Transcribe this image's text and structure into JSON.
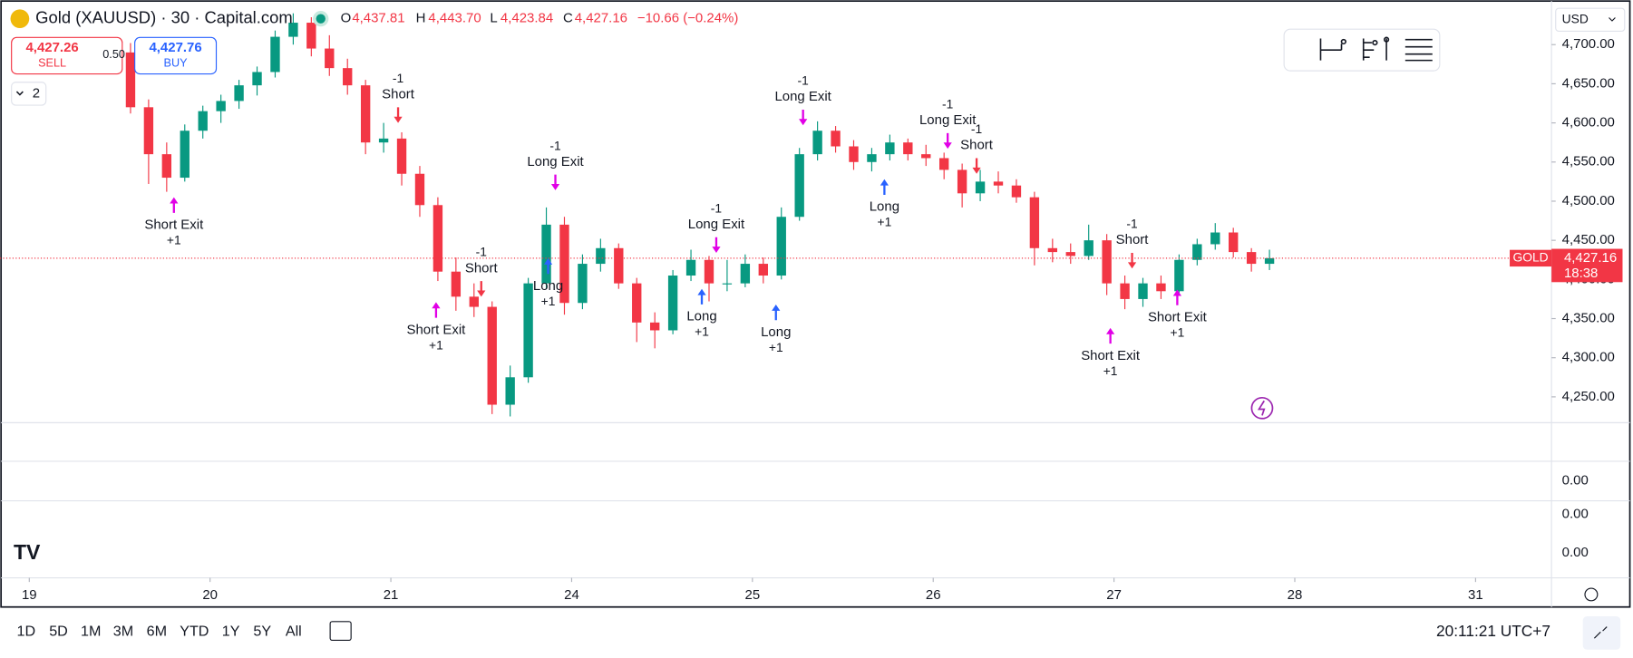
{
  "header": {
    "symbol": "Gold (XAUUSD) · 30 · Capital.com",
    "open_key": "O",
    "open": "4,437.81",
    "high_key": "H",
    "high": "4,443.70",
    "low_key": "L",
    "low": "4,423.84",
    "close_key": "C",
    "close": "4,427.16",
    "change": "−10.66 (−0.24%)"
  },
  "trade": {
    "sell_price": "4,427.26",
    "sell_label": "SELL",
    "spread": "0.50",
    "buy_price": "4,427.76",
    "buy_label": "BUY"
  },
  "indicator_count": "2",
  "currency": "USD",
  "chart_data": {
    "type": "candlestick",
    "x": [
      0.56,
      0.66,
      0.76,
      0.86,
      0.96,
      1.06,
      1.16,
      1.26,
      1.36,
      1.46,
      1.56,
      1.66,
      1.76,
      1.86,
      1.96,
      2.06,
      2.16,
      2.26,
      2.36,
      2.46,
      2.56,
      2.66,
      2.76,
      2.86,
      2.96,
      3.06,
      3.16,
      3.26,
      3.36,
      3.46,
      3.56,
      3.66,
      3.76,
      3.86,
      3.96,
      4.06,
      4.16,
      4.26,
      4.36,
      4.46,
      4.56,
      4.66,
      4.76,
      4.86,
      4.96,
      5.06,
      5.16,
      5.26,
      5.36,
      5.46,
      5.56,
      5.66,
      5.76,
      5.86,
      5.96,
      6.06,
      6.16,
      6.26,
      6.36,
      6.46,
      6.56,
      6.66,
      6.76,
      6.86
    ],
    "ohlc": [
      [
        4690,
        4702,
        4612,
        4620
      ],
      [
        4620,
        4630,
        4522,
        4560
      ],
      [
        4560,
        4575,
        4512,
        4530
      ],
      [
        4530,
        4598,
        4525,
        4590
      ],
      [
        4590,
        4622,
        4580,
        4615
      ],
      [
        4615,
        4636,
        4600,
        4628
      ],
      [
        4628,
        4655,
        4618,
        4648
      ],
      [
        4648,
        4672,
        4635,
        4665
      ],
      [
        4665,
        4718,
        4658,
        4710
      ],
      [
        4710,
        4740,
        4700,
        4728
      ],
      [
        4728,
        4735,
        4685,
        4695
      ],
      [
        4695,
        4712,
        4660,
        4670
      ],
      [
        4670,
        4682,
        4636,
        4648
      ],
      [
        4648,
        4655,
        4560,
        4575
      ],
      [
        4575,
        4600,
        4562,
        4580
      ],
      [
        4580,
        4588,
        4520,
        4535
      ],
      [
        4535,
        4545,
        4480,
        4495
      ],
      [
        4495,
        4505,
        4398,
        4410
      ],
      [
        4410,
        4428,
        4360,
        4378
      ],
      [
        4378,
        4395,
        4352,
        4365
      ],
      [
        4365,
        4372,
        4228,
        4240
      ],
      [
        4240,
        4290,
        4225,
        4275
      ],
      [
        4275,
        4402,
        4268,
        4395
      ],
      [
        4395,
        4492,
        4388,
        4470
      ],
      [
        4470,
        4480,
        4355,
        4370
      ],
      [
        4370,
        4432,
        4362,
        4420
      ],
      [
        4420,
        4452,
        4410,
        4440
      ],
      [
        4440,
        4446,
        4388,
        4395
      ],
      [
        4395,
        4402,
        4320,
        4345
      ],
      [
        4345,
        4358,
        4312,
        4335
      ],
      [
        4335,
        4412,
        4330,
        4405
      ],
      [
        4405,
        4438,
        4398,
        4425
      ],
      [
        4425,
        4430,
        4372,
        4395
      ],
      [
        4395,
        4425,
        4385,
        4395
      ],
      [
        4395,
        4432,
        4390,
        4420
      ],
      [
        4420,
        4428,
        4395,
        4405
      ],
      [
        4405,
        4492,
        4400,
        4480
      ],
      [
        4480,
        4568,
        4475,
        4560
      ],
      [
        4560,
        4602,
        4552,
        4590
      ],
      [
        4590,
        4596,
        4562,
        4570
      ],
      [
        4570,
        4578,
        4540,
        4550
      ],
      [
        4550,
        4568,
        4538,
        4560
      ],
      [
        4560,
        4585,
        4552,
        4575
      ],
      [
        4575,
        4580,
        4552,
        4560
      ],
      [
        4560,
        4572,
        4545,
        4555
      ],
      [
        4555,
        4562,
        4528,
        4540
      ],
      [
        4540,
        4548,
        4492,
        4510
      ],
      [
        4510,
        4540,
        4500,
        4525
      ],
      [
        4525,
        4538,
        4510,
        4520
      ],
      [
        4520,
        4528,
        4498,
        4505
      ],
      [
        4505,
        4512,
        4418,
        4440
      ],
      [
        4440,
        4452,
        4422,
        4435
      ],
      [
        4435,
        4446,
        4420,
        4430
      ],
      [
        4430,
        4470,
        4425,
        4450
      ],
      [
        4450,
        4458,
        4380,
        4395
      ],
      [
        4395,
        4405,
        4362,
        4375
      ],
      [
        4375,
        4402,
        4365,
        4395
      ],
      [
        4395,
        4405,
        4375,
        4385
      ],
      [
        4385,
        4432,
        4380,
        4425
      ],
      [
        4425,
        4452,
        4418,
        4445
      ],
      [
        4445,
        4472,
        4438,
        4460
      ],
      [
        4460,
        4466,
        4428,
        4435
      ],
      [
        4435,
        4440,
        4410,
        4420
      ],
      [
        4420,
        4438,
        4412,
        4427.16
      ]
    ],
    "up_color": "#089981",
    "down_color": "#f23645",
    "xlim": [
      -0.162,
      8.42
    ],
    "xticks": [
      {
        "value": 0,
        "label": "19"
      },
      {
        "value": 1,
        "label": "20"
      },
      {
        "value": 2,
        "label": "21"
      },
      {
        "value": 3,
        "label": "24"
      },
      {
        "value": 4,
        "label": "25"
      },
      {
        "value": 5,
        "label": "26"
      },
      {
        "value": 6,
        "label": "27"
      },
      {
        "value": 7,
        "label": "28"
      },
      {
        "value": 8,
        "label": "31"
      }
    ],
    "ylim": [
      4217,
      4757
    ],
    "yticks": [
      {
        "value": 4250,
        "label": "4,250.00"
      },
      {
        "value": 4300,
        "label": "4,300.00"
      },
      {
        "value": 4350,
        "label": "4,350.00"
      },
      {
        "value": 4400,
        "label": "4,400.00"
      },
      {
        "value": 4450,
        "label": "4,450.00"
      },
      {
        "value": 4500,
        "label": "4,500.00"
      },
      {
        "value": 4550,
        "label": "4,550.00"
      },
      {
        "value": 4600,
        "label": "4,600.00"
      },
      {
        "value": 4650,
        "label": "4,650.00"
      },
      {
        "value": 4700,
        "label": "4,700.00"
      }
    ],
    "last": {
      "value": 4427.16,
      "label": "4,427.16"
    },
    "symbol_tag": "GOLD",
    "countdown": "18:38",
    "signals": [
      {
        "label": "Short Exit",
        "qty": "+1",
        "x": 0.8,
        "price": 4505,
        "side": "buy",
        "color": "#e100e6"
      },
      {
        "label": "Short",
        "qty": "-1",
        "x": 2.04,
        "price": 4600,
        "side": "sell",
        "color": "#f23645"
      },
      {
        "label": "Short Exit",
        "qty": "+1",
        "x": 2.25,
        "price": 4371,
        "side": "buy",
        "color": "#e100e6"
      },
      {
        "label": "Short",
        "qty": "-1",
        "x": 2.5,
        "price": 4378,
        "side": "sell",
        "color": "#f23645"
      },
      {
        "label": "Long",
        "qty": "+1",
        "x": 2.87,
        "price": 4427,
        "side": "buy",
        "color": "#2962ff"
      },
      {
        "label": "Long Exit",
        "qty": "-1",
        "x": 2.91,
        "price": 4514,
        "side": "sell",
        "color": "#e100e6"
      },
      {
        "label": "Long",
        "qty": "+1",
        "x": 3.72,
        "price": 4388,
        "side": "buy",
        "color": "#2962ff"
      },
      {
        "label": "Long Exit",
        "qty": "-1",
        "x": 3.8,
        "price": 4434,
        "side": "sell",
        "color": "#e100e6"
      },
      {
        "label": "Long",
        "qty": "+1",
        "x": 4.13,
        "price": 4368,
        "side": "buy",
        "color": "#2962ff"
      },
      {
        "label": "Long Exit",
        "qty": "-1",
        "x": 4.28,
        "price": 4597,
        "side": "sell",
        "color": "#e100e6"
      },
      {
        "label": "Long",
        "qty": "+1",
        "x": 4.73,
        "price": 4528,
        "side": "buy",
        "color": "#2962ff"
      },
      {
        "label": "Long Exit",
        "qty": "-1",
        "x": 5.08,
        "price": 4567,
        "side": "sell",
        "color": "#e100e6"
      },
      {
        "label": "Short",
        "qty": "-1",
        "x": 5.24,
        "price": 4535,
        "side": "sell",
        "color": "#f23645"
      },
      {
        "label": "Short Exit",
        "qty": "+1",
        "x": 5.98,
        "price": 4338,
        "side": "buy",
        "color": "#e100e6"
      },
      {
        "label": "Short",
        "qty": "-1",
        "x": 6.1,
        "price": 4414,
        "side": "sell",
        "color": "#f23645"
      },
      {
        "label": "Short Exit",
        "qty": "+1",
        "x": 6.35,
        "price": 4387,
        "side": "buy",
        "color": "#e100e6"
      }
    ]
  },
  "lower_pane": {
    "ticks": [
      "0.00",
      "0.00",
      "0.00"
    ]
  },
  "toolbar": {
    "ranges": [
      "1D",
      "5D",
      "1M",
      "3M",
      "6M",
      "YTD",
      "1Y",
      "5Y",
      "All"
    ],
    "clock": "20:11:21 UTC+7"
  }
}
